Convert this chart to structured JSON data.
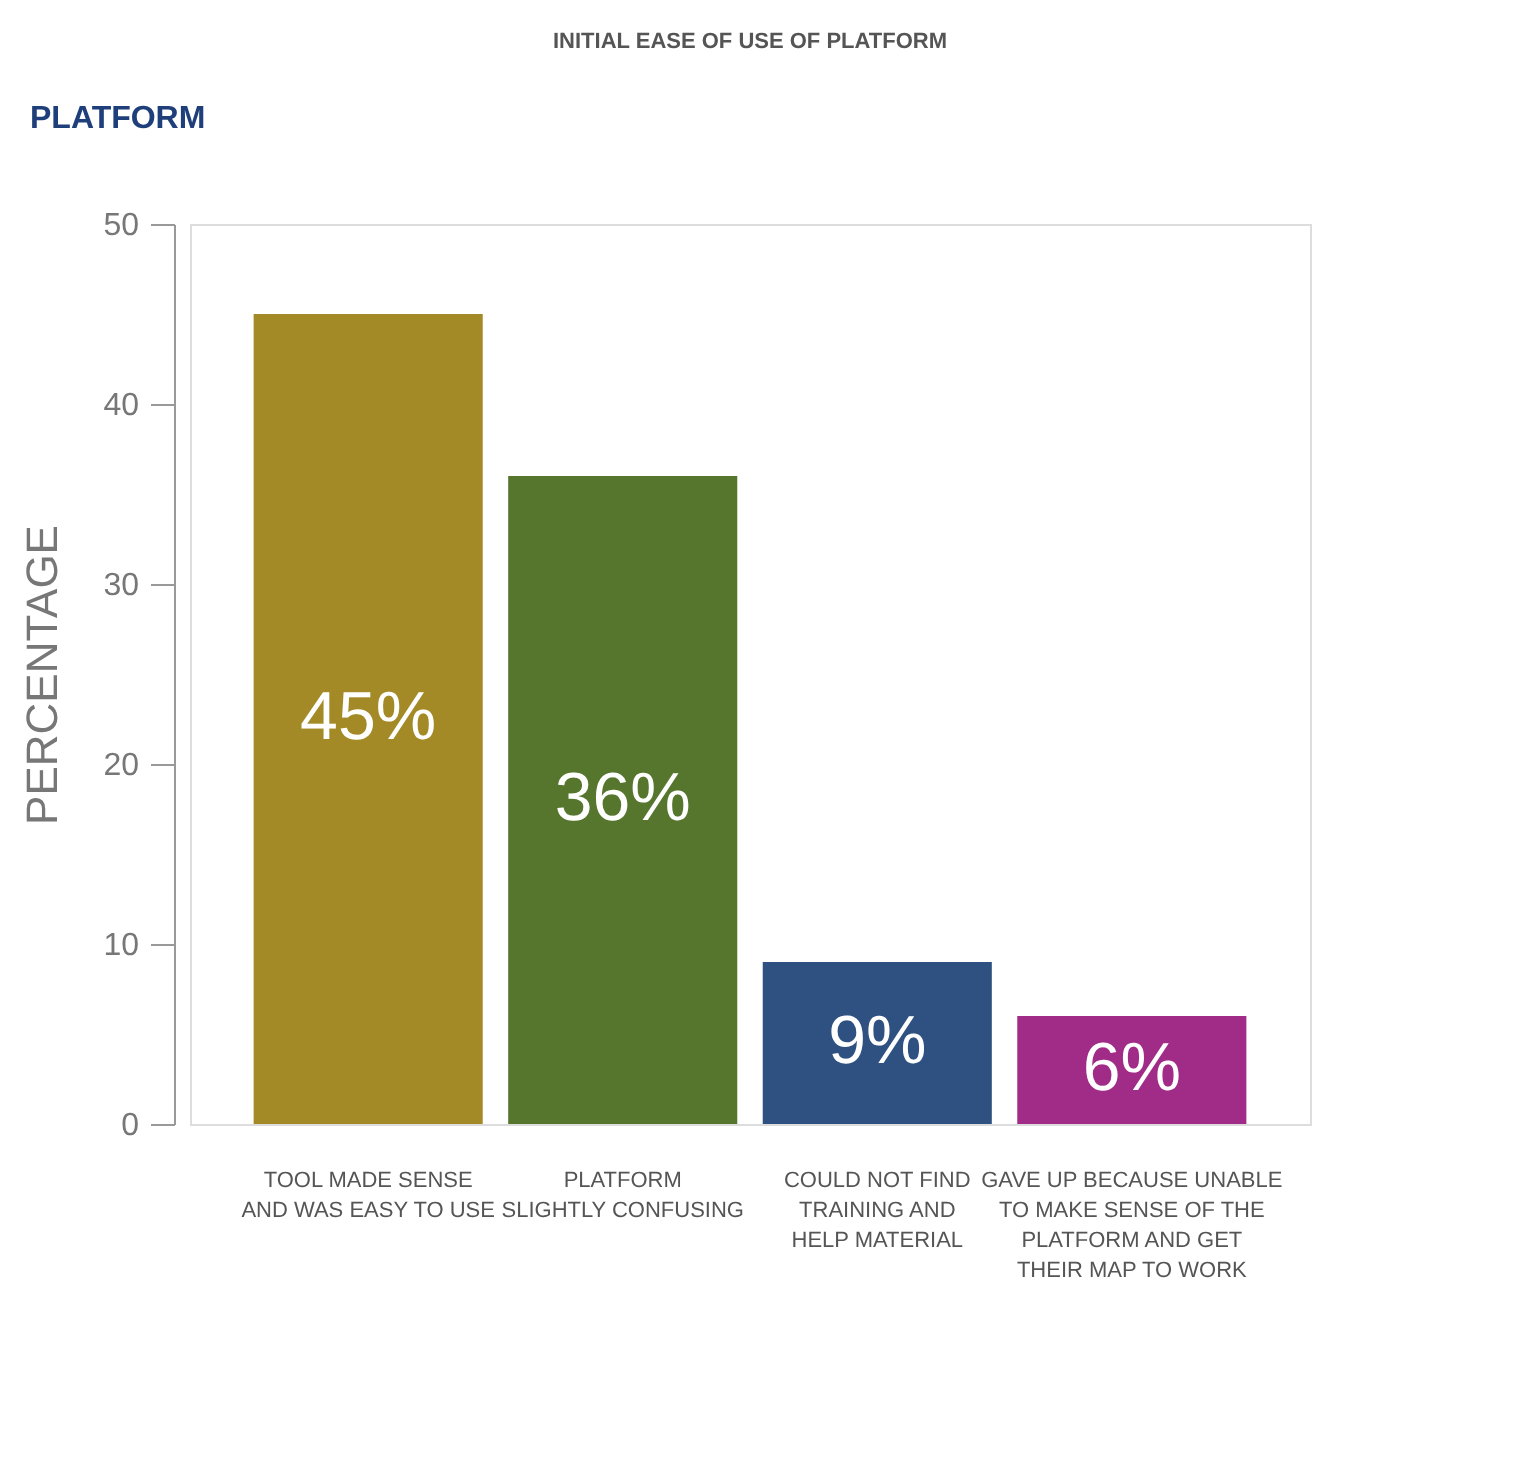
{
  "chart_data": {
    "type": "bar",
    "title": "INITIAL EASE OF USE OF PLATFORM",
    "ylabel": "PERCENTAGE",
    "annotations": [
      "PLATFORM"
    ],
    "categories": [
      "TOOL MADE SENSE\nAND WAS EASY TO USE",
      "PLATFORM\nSLIGHTLY CONFUSING",
      "COULD NOT FIND\nTRAINING AND\nHELP MATERIAL",
      "GAVE UP BECAUSE UNABLE\nTO MAKE SENSE OF THE\nPLATFORM AND GET\nTHEIR MAP TO WORK"
    ],
    "values": [
      45,
      36,
      9,
      6
    ],
    "colors": [
      "#a38a26",
      "#56762e",
      "#2f5181",
      "#a02c88"
    ],
    "value_labels": [
      "45%",
      "36%",
      "9%",
      "6%"
    ],
    "ylim": [
      0,
      50
    ],
    "yticks": [
      0,
      10,
      20,
      30,
      40,
      50
    ],
    "grid": false
  }
}
